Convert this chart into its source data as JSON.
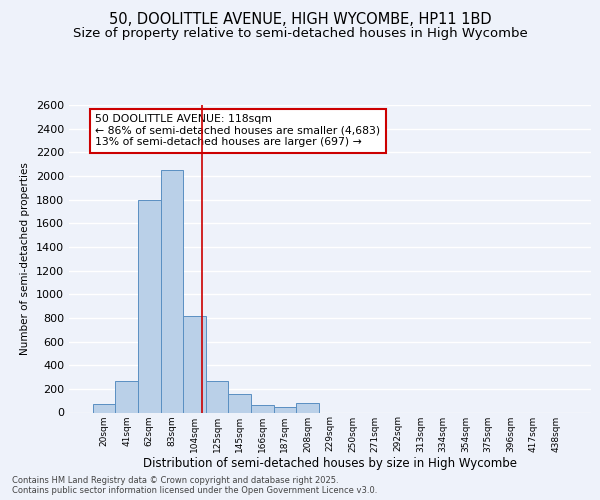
{
  "title1": "50, DOOLITTLE AVENUE, HIGH WYCOMBE, HP11 1BD",
  "title2": "Size of property relative to semi-detached houses in High Wycombe",
  "xlabel": "Distribution of semi-detached houses by size in High Wycombe",
  "ylabel": "Number of semi-detached properties",
  "footer": "Contains HM Land Registry data © Crown copyright and database right 2025.\nContains public sector information licensed under the Open Government Licence v3.0.",
  "bin_labels": [
    "20sqm",
    "41sqm",
    "62sqm",
    "83sqm",
    "104sqm",
    "125sqm",
    "145sqm",
    "166sqm",
    "187sqm",
    "208sqm",
    "229sqm",
    "250sqm",
    "271sqm",
    "292sqm",
    "313sqm",
    "334sqm",
    "354sqm",
    "375sqm",
    "396sqm",
    "417sqm",
    "438sqm"
  ],
  "bar_values": [
    75,
    270,
    1800,
    2050,
    820,
    265,
    155,
    60,
    45,
    80,
    0,
    0,
    0,
    0,
    0,
    0,
    0,
    0,
    0,
    0,
    0
  ],
  "bar_color": "#bad0e8",
  "bar_edge_color": "#5a8fc2",
  "highlight_label": "50 DOOLITTLE AVENUE: 118sqm\n← 86% of semi-detached houses are smaller (4,683)\n13% of semi-detached houses are larger (697) →",
  "vline_color": "#cc0000",
  "annotation_box_color": "#cc0000",
  "ylim": [
    0,
    2600
  ],
  "yticks": [
    0,
    200,
    400,
    600,
    800,
    1000,
    1200,
    1400,
    1600,
    1800,
    2000,
    2200,
    2400,
    2600
  ],
  "background_color": "#eef2fa",
  "grid_color": "#ffffff",
  "title1_fontsize": 10.5,
  "title2_fontsize": 9.5,
  "vline_x_index": 4.35
}
